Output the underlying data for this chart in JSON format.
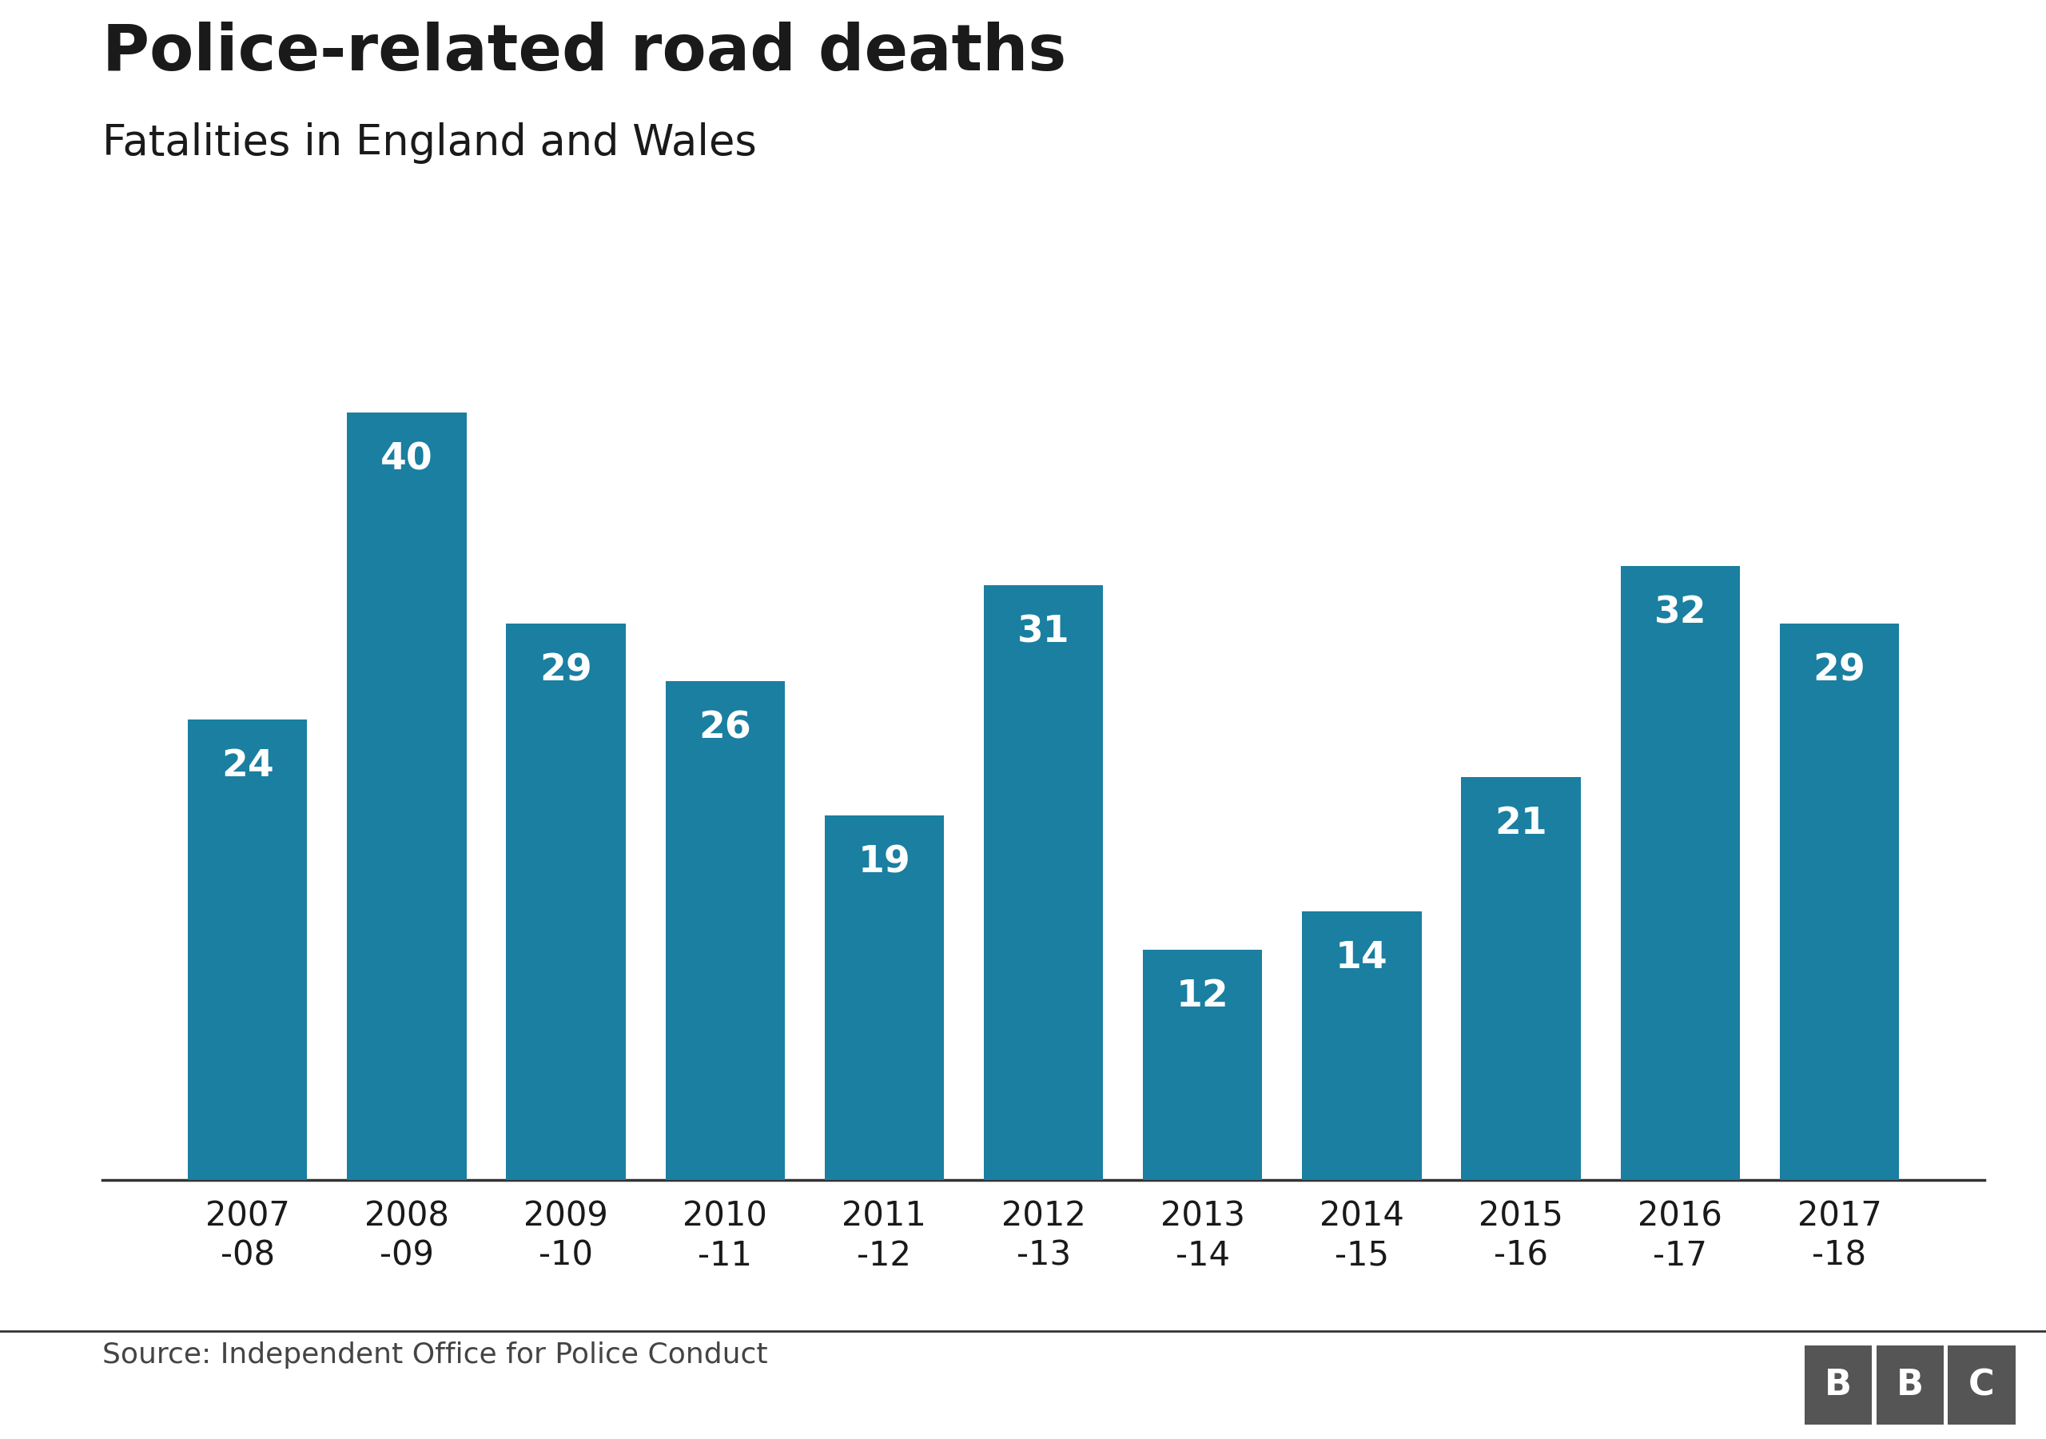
{
  "title": "Police-related road deaths",
  "subtitle": "Fatalities in England and Wales",
  "source": "Source: Independent Office for Police Conduct",
  "categories": [
    "2007\n-08",
    "2008\n-09",
    "2009\n-10",
    "2010\n-11",
    "2011\n-12",
    "2012\n-13",
    "2013\n-14",
    "2014\n-15",
    "2015\n-16",
    "2016\n-17",
    "2017\n-18"
  ],
  "values": [
    24,
    40,
    29,
    26,
    19,
    31,
    12,
    14,
    21,
    32,
    29
  ],
  "bar_color": "#1a7fa0",
  "background_color": "#ffffff",
  "label_color": "#ffffff",
  "title_color": "#1a1a1a",
  "subtitle_color": "#1a1a1a",
  "source_color": "#444444",
  "bbc_box_color": "#555555",
  "bbc_text_color": "#ffffff",
  "ylim": [
    0,
    45
  ],
  "title_fontsize": 58,
  "subtitle_fontsize": 38,
  "value_fontsize": 34,
  "tick_fontsize": 30,
  "source_fontsize": 26
}
